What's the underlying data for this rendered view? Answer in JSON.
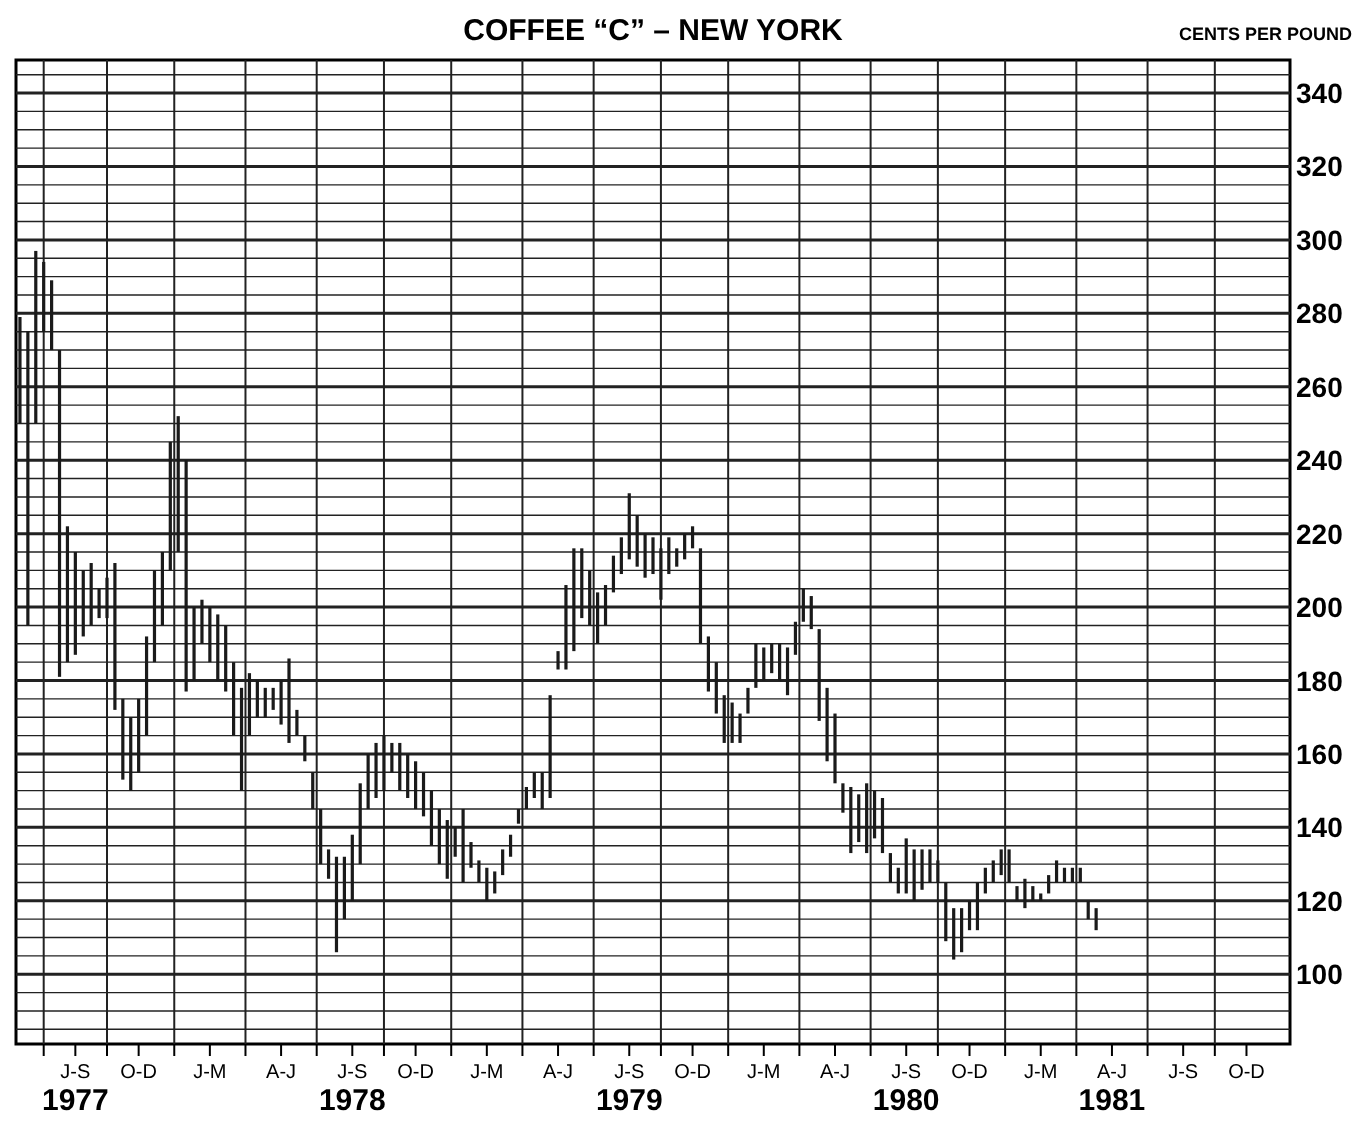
{
  "chart_data": {
    "type": "bar",
    "title": "COFFEE “C” – NEW YORK",
    "ylabel": "CENTS PER POUND",
    "categories": [
      null,
      null,
      null,
      null,
      null,
      null,
      null,
      "J-S\n1977",
      null,
      null,
      null,
      null,
      null,
      null,
      null,
      "O-D",
      null,
      null,
      null,
      null,
      null,
      null,
      null,
      null,
      "J-M",
      null,
      null,
      null,
      null,
      null,
      null,
      null,
      null,
      "A-J",
      null,
      null,
      null,
      null,
      null,
      null,
      null,
      null,
      "J-S\n1978",
      null,
      null,
      null,
      null,
      null,
      null,
      null,
      "O-D",
      null,
      null,
      null,
      null,
      null,
      null,
      null,
      null,
      "J-M",
      null,
      null,
      null,
      null,
      null,
      null,
      null,
      null,
      "A-J",
      null,
      null,
      null,
      null,
      null,
      null,
      null,
      null,
      "J-S\n1979",
      null,
      null,
      null,
      null,
      null,
      null,
      null,
      "O-D",
      null,
      null,
      null,
      null,
      null,
      null,
      null,
      null,
      "J-M",
      null,
      null,
      null,
      null,
      null,
      null,
      null,
      null,
      "A-J",
      null,
      null,
      null,
      null,
      null,
      null,
      null,
      null,
      "J-S\n1980",
      null,
      null,
      null,
      null,
      null,
      null,
      null,
      "O-D",
      null,
      null,
      null,
      null,
      null,
      null,
      null,
      null,
      "J-M",
      null,
      null,
      null,
      null,
      null,
      null,
      null,
      null,
      "A-J\n1981",
      null,
      null,
      null,
      null,
      null,
      null,
      null,
      null,
      "J-S",
      null,
      null,
      null,
      null,
      null,
      null,
      null,
      "O-D",
      null,
      null,
      null,
      null,
      null
    ],
    "base": [
      250,
      195,
      250,
      275,
      270,
      181,
      185,
      187,
      192,
      195,
      197,
      197,
      172,
      153,
      150,
      155,
      165,
      185,
      195,
      210,
      215,
      177,
      180,
      190,
      185,
      180,
      177,
      165,
      150,
      165,
      170,
      170,
      172,
      168,
      163,
      165,
      158,
      145,
      130,
      126,
      106,
      115,
      120,
      130,
      145,
      148,
      150,
      155,
      150,
      148,
      145,
      143,
      135,
      130,
      126,
      132,
      125,
      129,
      125,
      120,
      122,
      127,
      132,
      141,
      145,
      148,
      145,
      148,
      183,
      183,
      188,
      197,
      195,
      190,
      195,
      204,
      209,
      213,
      211,
      208,
      209,
      202,
      209,
      211,
      213,
      216,
      190,
      177,
      171,
      163,
      163,
      163,
      171,
      178,
      180,
      182,
      180,
      176,
      187,
      196,
      194,
      169,
      158,
      152,
      144,
      133,
      136,
      133,
      137,
      133,
      125,
      122,
      122,
      120,
      123,
      125,
      125,
      109,
      104,
      106,
      112,
      112,
      122,
      125,
      127,
      125,
      120,
      118,
      120,
      120,
      122,
      125,
      125,
      125,
      125,
      115,
      112,
      null,
      null,
      null,
      null,
      null,
      null,
      null,
      null,
      null,
      null,
      null,
      null,
      null,
      null,
      null,
      null,
      null,
      null,
      null,
      null,
      null,
      null,
      null,
      null
    ],
    "values": [
      29,
      80,
      47,
      19,
      19,
      89,
      37,
      28,
      18,
      17,
      8,
      11,
      40,
      22,
      20,
      20,
      27,
      25,
      20,
      35,
      37,
      63,
      20,
      12,
      15,
      18,
      18,
      20,
      28,
      17,
      10,
      8,
      6,
      12,
      23,
      7,
      7,
      10,
      15,
      8,
      26,
      17,
      18,
      22,
      15,
      15,
      15,
      8,
      13,
      12,
      13,
      12,
      15,
      15,
      16,
      8,
      20,
      7,
      6,
      9,
      6,
      7,
      6,
      4,
      6,
      7,
      10,
      28,
      5,
      23,
      28,
      19,
      15,
      14,
      11,
      10,
      10,
      18,
      14,
      12,
      10,
      14,
      10,
      5,
      7,
      6,
      26,
      15,
      14,
      13,
      11,
      8,
      7,
      12,
      9,
      8,
      10,
      13,
      9,
      9,
      9,
      25,
      20,
      19,
      8,
      18,
      13,
      19,
      13,
      15,
      8,
      7,
      15,
      14,
      11,
      9,
      6,
      16,
      14,
      12,
      8,
      13,
      7,
      6,
      7,
      9,
      4,
      8,
      4,
      2,
      5,
      6,
      4,
      4,
      4,
      5,
      6,
      null,
      null,
      null,
      null,
      null,
      null,
      null,
      null,
      null,
      null,
      null,
      null,
      null,
      null,
      null,
      null,
      null,
      null,
      null,
      null,
      null,
      null,
      null,
      null
    ],
    "color": "#1a1a1a",
    "ylim": [
      81,
      349
    ],
    "yticks": [
      {
        "value": 85,
        "label": null
      },
      {
        "value": 90,
        "label": null
      },
      {
        "value": 95,
        "label": null
      },
      100,
      {
        "value": 105,
        "label": null
      },
      {
        "value": 110,
        "label": null
      },
      {
        "value": 115,
        "label": null
      },
      120,
      {
        "value": 125,
        "label": null
      },
      {
        "value": 130,
        "label": null
      },
      {
        "value": 135,
        "label": null
      },
      140,
      {
        "value": 145,
        "label": null
      },
      {
        "value": 150,
        "label": null
      },
      {
        "value": 155,
        "label": null
      },
      160,
      {
        "value": 165,
        "label": null
      },
      {
        "value": 170,
        "label": null
      },
      {
        "value": 175,
        "label": null
      },
      180,
      {
        "value": 185,
        "label": null
      },
      {
        "value": 190,
        "label": null
      },
      {
        "value": 195,
        "label": null
      },
      200,
      {
        "value": 205,
        "label": null
      },
      {
        "value": 210,
        "label": null
      },
      {
        "value": 215,
        "label": null
      },
      220,
      {
        "value": 225,
        "label": null
      },
      {
        "value": 230,
        "label": null
      },
      {
        "value": 235,
        "label": null
      },
      240,
      {
        "value": 245,
        "label": null
      },
      {
        "value": 250,
        "label": null
      },
      {
        "value": 255,
        "label": null
      },
      260,
      {
        "value": 265,
        "label": null
      },
      {
        "value": 270,
        "label": null
      },
      {
        "value": 275,
        "label": null
      },
      280,
      {
        "value": 285,
        "label": null
      },
      {
        "value": 290,
        "label": null
      },
      {
        "value": 295,
        "label": null
      },
      300,
      {
        "value": 305,
        "label": null
      },
      {
        "value": 310,
        "label": null
      },
      {
        "value": 315,
        "label": null
      },
      320,
      {
        "value": 325,
        "label": null
      },
      {
        "value": 330,
        "label": null
      },
      {
        "value": 335,
        "label": null
      },
      340,
      {
        "value": 345,
        "label": null
      }
    ],
    "grid": true
  }
}
